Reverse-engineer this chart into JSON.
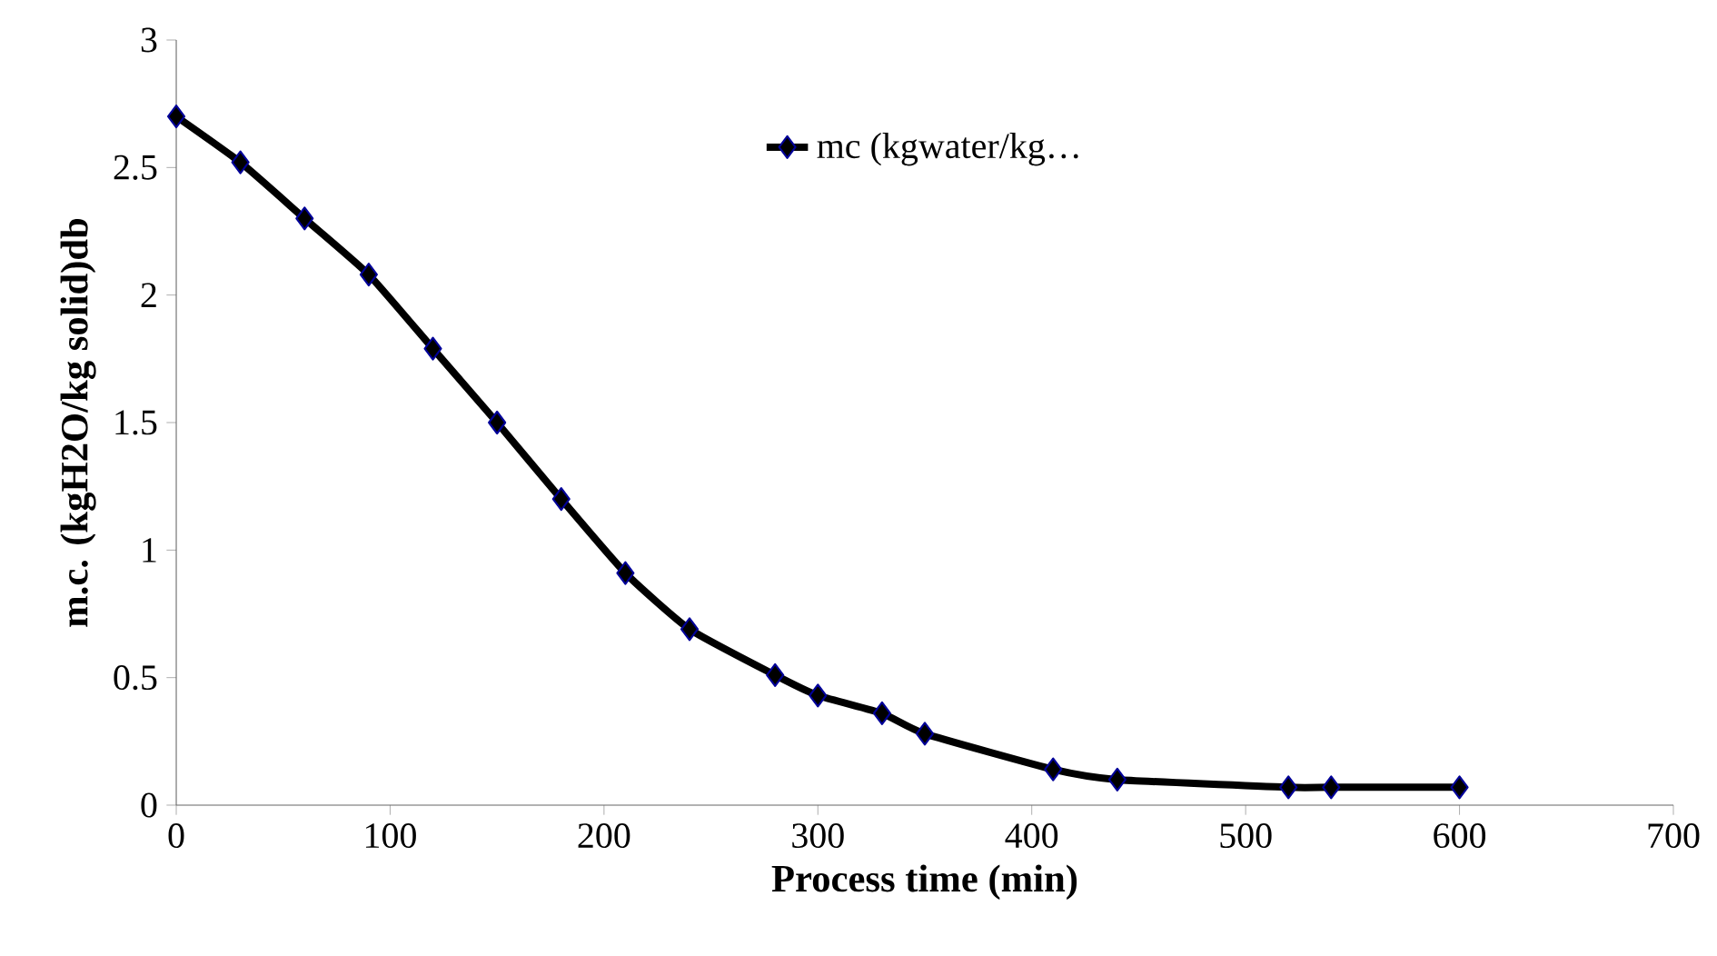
{
  "chart_data": {
    "type": "line",
    "xlabel": "Process time (min)",
    "ylabel": "m.c. (kgH2O/kg solid)db",
    "x": [
      0,
      30,
      60,
      90,
      120,
      150,
      180,
      210,
      240,
      280,
      300,
      330,
      350,
      410,
      440,
      520,
      540,
      600
    ],
    "series": [
      {
        "name": "mc (kgwater/kg…",
        "color": "#000000",
        "values": [
          2.7,
          2.52,
          2.3,
          2.08,
          1.79,
          1.5,
          1.2,
          0.91,
          0.69,
          0.51,
          0.43,
          0.36,
          0.28,
          0.14,
          0.1,
          0.07,
          0.07,
          0.07
        ]
      }
    ],
    "xlim": [
      0,
      700
    ],
    "xticks": [
      0,
      100,
      200,
      300,
      400,
      500,
      600,
      700
    ],
    "ylim": [
      0,
      3
    ],
    "yticks": [
      0,
      0.5,
      1,
      1.5,
      2,
      2.5,
      3
    ],
    "grid": false,
    "legend": "top",
    "marker": "diamond",
    "line_style": "solid"
  }
}
